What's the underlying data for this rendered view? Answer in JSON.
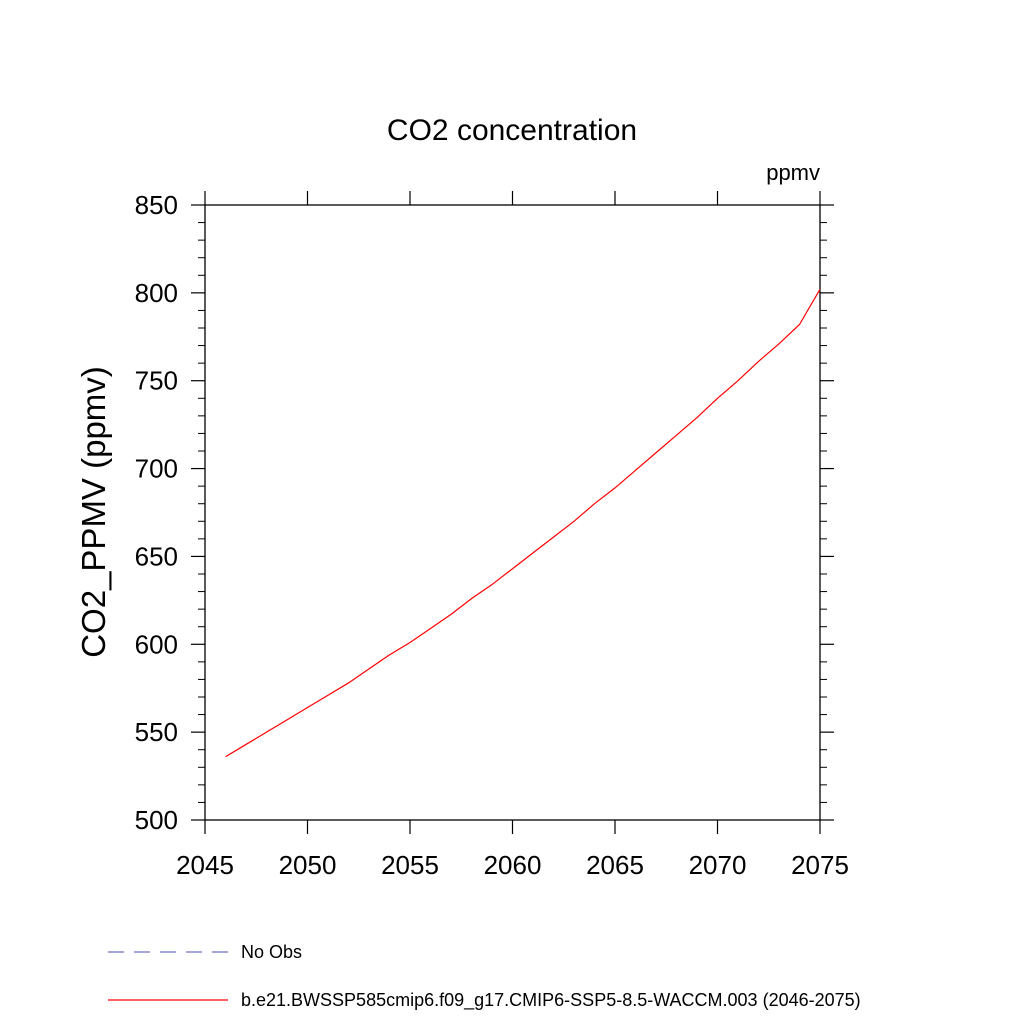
{
  "chart_data": {
    "type": "line",
    "title": "CO2 concentration",
    "units": "ppmv",
    "xlabel": "",
    "ylabel": "CO2_PPMV  (ppmv)",
    "xlim": [
      2045,
      2075
    ],
    "ylim": [
      500,
      850
    ],
    "x_ticks": [
      "2045",
      "2050",
      "2055",
      "2060",
      "2065",
      "2070",
      "2075"
    ],
    "y_ticks": [
      "500",
      "550",
      "600",
      "650",
      "700",
      "750",
      "800",
      "850"
    ],
    "series": [
      {
        "name": "b.e21.BWSSP585cmip6.f09_g17.CMIP6-SSP5-8.5-WACCM.003 (2046-2075)",
        "color": "#ff0000",
        "style": "solid",
        "x": [
          2046,
          2047,
          2048,
          2049,
          2050,
          2051,
          2052,
          2053,
          2054,
          2055,
          2056,
          2057,
          2058,
          2059,
          2060,
          2061,
          2062,
          2063,
          2064,
          2065,
          2066,
          2067,
          2068,
          2069,
          2070,
          2071,
          2072,
          2073,
          2074,
          2075
        ],
        "values": [
          536,
          543,
          550,
          557,
          564,
          571,
          578,
          586,
          594,
          601,
          609,
          617,
          626,
          634,
          643,
          652,
          661,
          670,
          680,
          689,
          699,
          709,
          719,
          729,
          740,
          750,
          761,
          771,
          782,
          802
        ]
      }
    ],
    "legend": [
      {
        "label": "No Obs",
        "color": "#7070c0",
        "style": "dashed"
      },
      {
        "label": "b.e21.BWSSP585cmip6.f09_g17.CMIP6-SSP5-8.5-WACCM.003 (2046-2075)",
        "color": "#ff0000",
        "style": "solid"
      }
    ],
    "legend_position": "bottom"
  }
}
